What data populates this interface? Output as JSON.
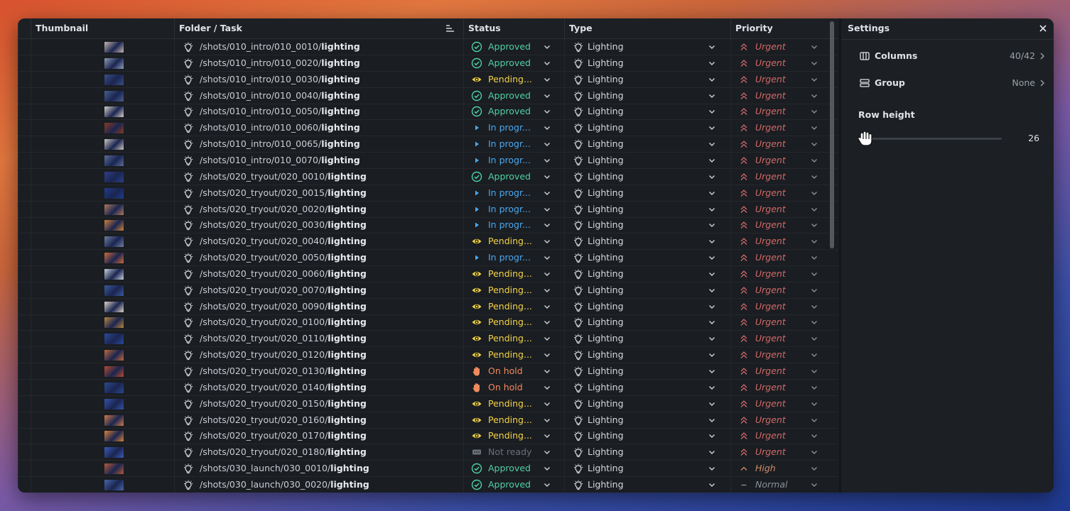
{
  "columns": {
    "thumbnail": "Thumbnail",
    "folder_task": "Folder / Task",
    "status": "Status",
    "type": "Type",
    "priority": "Priority"
  },
  "statuses": {
    "approved": {
      "label": "Approved",
      "color": "#4fd1a5",
      "icon": "check-circle-icon"
    },
    "pending": {
      "label": "Pending...",
      "color": "#f3d34a",
      "icon": "eye-icon"
    },
    "progress": {
      "label": "In progr...",
      "color": "#4aa8ef",
      "icon": "play-icon"
    },
    "hold": {
      "label": "On hold",
      "color": "#f08a5d",
      "icon": "hand-icon"
    },
    "notready": {
      "label": "Not ready",
      "color": "#6b7177",
      "icon": "dots-icon"
    }
  },
  "priorities": {
    "urgent": {
      "label": "Urgent",
      "color": "#d26a6a",
      "icon": "double-chevron-up-icon"
    },
    "high": {
      "label": "High",
      "color": "#cf8e6b",
      "icon": "chevron-up-icon"
    },
    "normal": {
      "label": "Normal",
      "color": "#8a9096",
      "icon": "dash-icon"
    }
  },
  "rows": [
    {
      "folder": "/shots/010_intro/010_0010/",
      "task": "lighting",
      "status": "approved",
      "type": "Lighting",
      "priority": "urgent",
      "thumb": "#c9b8b0"
    },
    {
      "folder": "/shots/010_intro/010_0020/",
      "task": "lighting",
      "status": "approved",
      "type": "Lighting",
      "priority": "urgent",
      "thumb": "#8e9cb8"
    },
    {
      "folder": "/shots/010_intro/010_0030/",
      "task": "lighting",
      "status": "pending",
      "type": "Lighting",
      "priority": "urgent",
      "thumb": "#3b4f86"
    },
    {
      "folder": "/shots/010_intro/010_0040/",
      "task": "lighting",
      "status": "approved",
      "type": "Lighting",
      "priority": "urgent",
      "thumb": "#4a5f8f"
    },
    {
      "folder": "/shots/010_intro/010_0050/",
      "task": "lighting",
      "status": "approved",
      "type": "Lighting",
      "priority": "urgent",
      "thumb": "#d8cfc8"
    },
    {
      "folder": "/shots/010_intro/010_0060/",
      "task": "lighting",
      "status": "progress",
      "type": "Lighting",
      "priority": "urgent",
      "thumb": "#8a3b22"
    },
    {
      "folder": "/shots/010_intro/010_0065/",
      "task": "lighting",
      "status": "progress",
      "type": "Lighting",
      "priority": "urgent",
      "thumb": "#cfc6be"
    },
    {
      "folder": "/shots/010_intro/010_0070/",
      "task": "lighting",
      "status": "progress",
      "type": "Lighting",
      "priority": "urgent",
      "thumb": "#5a6e98"
    },
    {
      "folder": "/shots/020_tryout/020_0010/",
      "task": "lighting",
      "status": "approved",
      "type": "Lighting",
      "priority": "urgent",
      "thumb": "#2e3f8a"
    },
    {
      "folder": "/shots/020_tryout/020_0015/",
      "task": "lighting",
      "status": "progress",
      "type": "Lighting",
      "priority": "urgent",
      "thumb": "#1f3c8c"
    },
    {
      "folder": "/shots/020_tryout/020_0020/",
      "task": "lighting",
      "status": "progress",
      "type": "Lighting",
      "priority": "urgent",
      "thumb": "#b07a5c"
    },
    {
      "folder": "/shots/020_tryout/020_0030/",
      "task": "lighting",
      "status": "progress",
      "type": "Lighting",
      "priority": "urgent",
      "thumb": "#d0813a"
    },
    {
      "folder": "/shots/020_tryout/020_0040/",
      "task": "lighting",
      "status": "pending",
      "type": "Lighting",
      "priority": "urgent",
      "thumb": "#6e7fa0"
    },
    {
      "folder": "/shots/020_tryout/020_0050/",
      "task": "lighting",
      "status": "progress",
      "type": "Lighting",
      "priority": "urgent",
      "thumb": "#d06a3a"
    },
    {
      "folder": "/shots/020_tryout/020_0060/",
      "task": "lighting",
      "status": "pending",
      "type": "Lighting",
      "priority": "urgent",
      "thumb": "#c8d2dc"
    },
    {
      "folder": "/shots/020_tryout/020_0070/",
      "task": "lighting",
      "status": "pending",
      "type": "Lighting",
      "priority": "urgent",
      "thumb": "#3d5a9c"
    },
    {
      "folder": "/shots/020_tryout/020_0090/",
      "task": "lighting",
      "status": "pending",
      "type": "Lighting",
      "priority": "urgent",
      "thumb": "#e0d4c6"
    },
    {
      "folder": "/shots/020_tryout/020_0100/",
      "task": "lighting",
      "status": "pending",
      "type": "Lighting",
      "priority": "urgent",
      "thumb": "#b8863e"
    },
    {
      "folder": "/shots/020_tryout/020_0110/",
      "task": "lighting",
      "status": "pending",
      "type": "Lighting",
      "priority": "urgent",
      "thumb": "#2c4a9a"
    },
    {
      "folder": "/shots/020_tryout/020_0120/",
      "task": "lighting",
      "status": "pending",
      "type": "Lighting",
      "priority": "urgent",
      "thumb": "#c06a3c"
    },
    {
      "folder": "/shots/020_tryout/020_0130/",
      "task": "lighting",
      "status": "hold",
      "type": "Lighting",
      "priority": "urgent",
      "thumb": "#b84a2e"
    },
    {
      "folder": "/shots/020_tryout/020_0140/",
      "task": "lighting",
      "status": "hold",
      "type": "Lighting",
      "priority": "urgent",
      "thumb": "#2b4a8e"
    },
    {
      "folder": "/shots/020_tryout/020_0150/",
      "task": "lighting",
      "status": "pending",
      "type": "Lighting",
      "priority": "urgent",
      "thumb": "#3552a8"
    },
    {
      "folder": "/shots/020_tryout/020_0160/",
      "task": "lighting",
      "status": "pending",
      "type": "Lighting",
      "priority": "urgent",
      "thumb": "#d07c4a"
    },
    {
      "folder": "/shots/020_tryout/020_0170/",
      "task": "lighting",
      "status": "pending",
      "type": "Lighting",
      "priority": "urgent",
      "thumb": "#d9843e"
    },
    {
      "folder": "/shots/020_tryout/020_0180/",
      "task": "lighting",
      "status": "notready",
      "type": "Lighting",
      "priority": "urgent",
      "thumb": "#3b5ab8"
    },
    {
      "folder": "/shots/030_launch/030_0010/",
      "task": "lighting",
      "status": "approved",
      "type": "Lighting",
      "priority": "high",
      "thumb": "#b45a38"
    },
    {
      "folder": "/shots/030_launch/030_0020/",
      "task": "lighting",
      "status": "approved",
      "type": "Lighting",
      "priority": "normal",
      "thumb": "#4a66a8"
    }
  ],
  "settings": {
    "title": "Settings",
    "columns_label": "Columns",
    "columns_value": "40/42",
    "group_label": "Group",
    "group_value": "None",
    "row_height_label": "Row height",
    "row_height_value": "26",
    "row_height_fraction": 0.05
  }
}
